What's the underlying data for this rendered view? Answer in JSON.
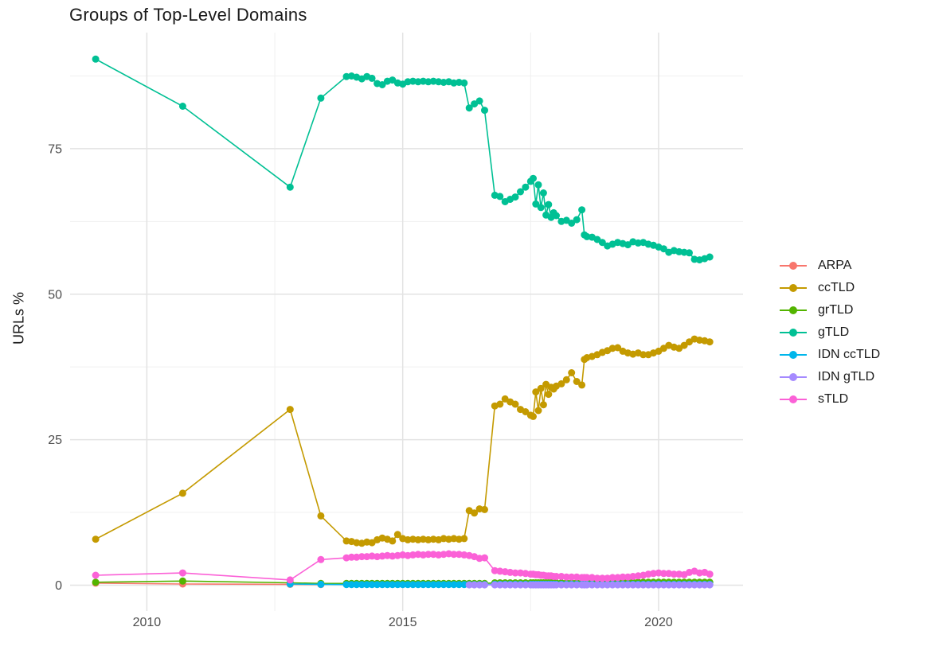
{
  "chart_data": {
    "type": "line",
    "title": "Groups of Top-Level Domains",
    "xlabel": "",
    "ylabel": "URLs %",
    "x_ticks": [
      2010,
      2015,
      2020
    ],
    "x_tick_labels": [
      "2010",
      "2015",
      "2020"
    ],
    "x_minor_gridlines": [
      2012.5,
      2017.5
    ],
    "y_ticks": [
      0,
      25,
      50,
      75
    ],
    "y_tick_labels": [
      "0",
      "25",
      "50",
      "75"
    ],
    "y_minor_gridlines": [
      12.5,
      37.5,
      62.5,
      87.5
    ],
    "xlim": [
      2008.5,
      2021.65
    ],
    "ylim": [
      -4.45,
      94.95
    ],
    "grid": "on",
    "legend_position": "right",
    "style": {
      "background": "#ffffff",
      "major_grid_color": "#e3e3e3",
      "minor_grid_color": "#f0f0f0",
      "tick_label_color": "#4d4d4d",
      "text_color": "#1a1a1a"
    },
    "series": [
      {
        "name": "ARPA",
        "color": "#F8766D",
        "x": [
          2009.0,
          2010.7,
          2012.8,
          2013.4
        ],
        "y": [
          0.35,
          0.2,
          0.15,
          0.1
        ]
      },
      {
        "name": "ccTLD",
        "color": "#C49A00",
        "x": [
          2009.0,
          2010.7,
          2012.8,
          2013.4,
          2013.9,
          2014.0,
          2014.1,
          2014.2,
          2014.3,
          2014.4,
          2014.5,
          2014.6,
          2014.7,
          2014.8,
          2014.9,
          2015.0,
          2015.1,
          2015.2,
          2015.3,
          2015.4,
          2015.5,
          2015.6,
          2015.7,
          2015.8,
          2015.9,
          2016.0,
          2016.1,
          2016.2,
          2016.3,
          2016.4,
          2016.5,
          2016.6,
          2016.8,
          2016.9,
          2017.0,
          2017.1,
          2017.2,
          2017.3,
          2017.4,
          2017.5,
          2017.55,
          2017.6,
          2017.65,
          2017.7,
          2017.75,
          2017.8,
          2017.85,
          2017.9,
          2017.95,
          2018.0,
          2018.1,
          2018.2,
          2018.3,
          2018.4,
          2018.5,
          2018.55,
          2018.6,
          2018.7,
          2018.8,
          2018.9,
          2019.0,
          2019.1,
          2019.2,
          2019.3,
          2019.4,
          2019.5,
          2019.6,
          2019.7,
          2019.8,
          2019.9,
          2020.0,
          2020.1,
          2020.2,
          2020.3,
          2020.4,
          2020.5,
          2020.6,
          2020.7,
          2020.8,
          2020.9,
          2021.0
        ],
        "y": [
          7.9,
          15.8,
          30.2,
          11.9,
          7.6,
          7.5,
          7.3,
          7.2,
          7.4,
          7.3,
          7.8,
          8.1,
          7.9,
          7.6,
          8.7,
          8.0,
          7.8,
          7.9,
          7.8,
          7.9,
          7.8,
          7.9,
          7.8,
          8.0,
          7.9,
          8.0,
          7.9,
          8.0,
          12.8,
          12.4,
          13.1,
          13.0,
          30.8,
          31.1,
          32.0,
          31.5,
          31.1,
          30.2,
          29.8,
          29.2,
          29.0,
          33.2,
          30.0,
          33.8,
          31.0,
          34.5,
          32.8,
          34.0,
          33.7,
          34.2,
          34.6,
          35.3,
          36.5,
          35.0,
          34.4,
          38.8,
          39.1,
          39.3,
          39.6,
          40.0,
          40.3,
          40.7,
          40.8,
          40.2,
          39.9,
          39.7,
          39.9,
          39.6,
          39.6,
          39.9,
          40.2,
          40.7,
          41.2,
          40.9,
          40.7,
          41.2,
          41.8,
          42.3,
          42.1,
          42.0,
          41.8
        ]
      },
      {
        "name": "grTLD",
        "color": "#53B400",
        "x": [
          2009.0,
          2010.7,
          2012.8,
          2013.4,
          2013.9,
          2014.0,
          2014.1,
          2014.2,
          2014.3,
          2014.4,
          2014.5,
          2014.6,
          2014.7,
          2014.8,
          2014.9,
          2015.0,
          2015.1,
          2015.2,
          2015.3,
          2015.4,
          2015.5,
          2015.6,
          2015.7,
          2015.8,
          2015.9,
          2016.0,
          2016.1,
          2016.2,
          2016.3,
          2016.4,
          2016.5,
          2016.6,
          2016.8,
          2016.9,
          2017.0,
          2017.1,
          2017.2,
          2017.3,
          2017.4,
          2017.5,
          2017.55,
          2017.6,
          2017.65,
          2017.7,
          2017.75,
          2017.8,
          2017.85,
          2017.9,
          2017.95,
          2018.0,
          2018.1,
          2018.2,
          2018.3,
          2018.4,
          2018.5,
          2018.55,
          2018.6,
          2018.7,
          2018.8,
          2018.9,
          2019.0,
          2019.1,
          2019.2,
          2019.3,
          2019.4,
          2019.5,
          2019.6,
          2019.7,
          2019.8,
          2019.9,
          2020.0,
          2020.1,
          2020.2,
          2020.3,
          2020.4,
          2020.5,
          2020.6,
          2020.7,
          2020.8,
          2020.9,
          2021.0
        ],
        "y": [
          0.5,
          0.7,
          0.4,
          0.3,
          0.3,
          0.3,
          0.3,
          0.3,
          0.3,
          0.3,
          0.3,
          0.3,
          0.3,
          0.3,
          0.3,
          0.3,
          0.3,
          0.3,
          0.3,
          0.3,
          0.3,
          0.3,
          0.3,
          0.3,
          0.3,
          0.3,
          0.3,
          0.3,
          0.3,
          0.3,
          0.3,
          0.3,
          0.4,
          0.4,
          0.4,
          0.4,
          0.4,
          0.4,
          0.4,
          0.4,
          0.4,
          0.4,
          0.4,
          0.4,
          0.4,
          0.4,
          0.4,
          0.4,
          0.4,
          0.4,
          0.4,
          0.4,
          0.4,
          0.4,
          0.4,
          0.4,
          0.4,
          0.4,
          0.4,
          0.4,
          0.4,
          0.5,
          0.5,
          0.5,
          0.5,
          0.5,
          0.5,
          0.5,
          0.5,
          0.5,
          0.5,
          0.5,
          0.5,
          0.5,
          0.5,
          0.5,
          0.5,
          0.5,
          0.5,
          0.5,
          0.5
        ]
      },
      {
        "name": "gTLD",
        "color": "#00C094",
        "x": [
          2009.0,
          2010.7,
          2012.8,
          2013.4,
          2013.9,
          2014.0,
          2014.1,
          2014.2,
          2014.3,
          2014.4,
          2014.5,
          2014.6,
          2014.7,
          2014.8,
          2014.9,
          2015.0,
          2015.1,
          2015.2,
          2015.3,
          2015.4,
          2015.5,
          2015.6,
          2015.7,
          2015.8,
          2015.9,
          2016.0,
          2016.1,
          2016.2,
          2016.3,
          2016.4,
          2016.5,
          2016.6,
          2016.8,
          2016.9,
          2017.0,
          2017.1,
          2017.2,
          2017.3,
          2017.4,
          2017.5,
          2017.55,
          2017.6,
          2017.65,
          2017.7,
          2017.75,
          2017.8,
          2017.85,
          2017.9,
          2017.95,
          2018.0,
          2018.1,
          2018.2,
          2018.3,
          2018.4,
          2018.5,
          2018.55,
          2018.6,
          2018.7,
          2018.8,
          2018.9,
          2019.0,
          2019.1,
          2019.2,
          2019.3,
          2019.4,
          2019.5,
          2019.6,
          2019.7,
          2019.8,
          2019.9,
          2020.0,
          2020.1,
          2020.2,
          2020.3,
          2020.4,
          2020.5,
          2020.6,
          2020.7,
          2020.8,
          2020.9,
          2021.0
        ],
        "y": [
          90.4,
          82.3,
          68.4,
          83.7,
          87.4,
          87.5,
          87.3,
          87.0,
          87.4,
          87.1,
          86.2,
          86.0,
          86.6,
          86.8,
          86.3,
          86.1,
          86.5,
          86.6,
          86.5,
          86.6,
          86.5,
          86.6,
          86.5,
          86.4,
          86.5,
          86.3,
          86.4,
          86.3,
          82.0,
          82.7,
          83.2,
          81.6,
          67.0,
          66.8,
          65.9,
          66.3,
          66.7,
          67.6,
          68.4,
          69.4,
          69.9,
          65.5,
          68.8,
          64.9,
          67.4,
          63.6,
          65.4,
          63.2,
          64.0,
          63.5,
          62.5,
          62.7,
          62.2,
          62.8,
          64.5,
          60.2,
          59.9,
          59.8,
          59.4,
          58.9,
          58.3,
          58.6,
          58.9,
          58.7,
          58.5,
          59.0,
          58.8,
          58.9,
          58.6,
          58.4,
          58.1,
          57.8,
          57.2,
          57.5,
          57.3,
          57.2,
          57.1,
          56.0,
          55.9,
          56.1,
          56.4
        ]
      },
      {
        "name": "IDN ccTLD",
        "color": "#00B6EB",
        "x": [
          2012.8,
          2013.4,
          2013.9,
          2014.0,
          2014.1,
          2014.2,
          2014.3,
          2014.4,
          2014.5,
          2014.6,
          2014.7,
          2014.8,
          2014.9,
          2015.0,
          2015.1,
          2015.2,
          2015.3,
          2015.4,
          2015.5,
          2015.6,
          2015.7,
          2015.8,
          2015.9,
          2016.0,
          2016.1,
          2016.2,
          2016.3,
          2016.4,
          2016.5,
          2016.6,
          2016.8,
          2016.9,
          2017.0,
          2017.1,
          2017.2,
          2017.3,
          2017.4,
          2017.5,
          2017.55,
          2017.6,
          2017.65,
          2017.7,
          2017.75,
          2017.8,
          2017.85,
          2017.9,
          2017.95,
          2018.0,
          2018.1,
          2018.2,
          2018.3,
          2018.4,
          2018.5,
          2018.55,
          2018.6,
          2018.7,
          2018.8,
          2018.9,
          2019.0,
          2019.1,
          2019.2,
          2019.3,
          2019.4,
          2019.5,
          2019.6,
          2019.7,
          2019.8,
          2019.9,
          2020.0,
          2020.1,
          2020.2,
          2020.3,
          2020.4,
          2020.5,
          2020.6,
          2020.7,
          2020.8,
          2020.9,
          2021.0
        ],
        "y": [
          0.2,
          0.15,
          0.1,
          0.1,
          0.1,
          0.1,
          0.1,
          0.1,
          0.1,
          0.1,
          0.1,
          0.1,
          0.1,
          0.1,
          0.1,
          0.1,
          0.1,
          0.1,
          0.1,
          0.1,
          0.1,
          0.1,
          0.1,
          0.1,
          0.1,
          0.1,
          0.1,
          0.1,
          0.1,
          0.1,
          0.15,
          0.15,
          0.15,
          0.15,
          0.15,
          0.15,
          0.15,
          0.15,
          0.15,
          0.15,
          0.15,
          0.15,
          0.15,
          0.15,
          0.15,
          0.15,
          0.15,
          0.15,
          0.15,
          0.15,
          0.15,
          0.15,
          0.15,
          0.15,
          0.15,
          0.15,
          0.15,
          0.15,
          0.15,
          0.15,
          0.15,
          0.15,
          0.15,
          0.15,
          0.15,
          0.15,
          0.15,
          0.15,
          0.15,
          0.15,
          0.15,
          0.15,
          0.15,
          0.15,
          0.15,
          0.15,
          0.15,
          0.15,
          0.15
        ]
      },
      {
        "name": "IDN gTLD",
        "color": "#A58AFF",
        "x": [
          2016.3,
          2016.4,
          2016.5,
          2016.6,
          2016.8,
          2016.9,
          2017.0,
          2017.1,
          2017.2,
          2017.3,
          2017.4,
          2017.5,
          2017.55,
          2017.6,
          2017.65,
          2017.7,
          2017.75,
          2017.8,
          2017.85,
          2017.9,
          2017.95,
          2018.0,
          2018.1,
          2018.2,
          2018.3,
          2018.4,
          2018.5,
          2018.55,
          2018.6,
          2018.7,
          2018.8,
          2018.9,
          2019.0,
          2019.1,
          2019.2,
          2019.3,
          2019.4,
          2019.5,
          2019.6,
          2019.7,
          2019.8,
          2019.9,
          2020.0,
          2020.1,
          2020.2,
          2020.3,
          2020.4,
          2020.5,
          2020.6,
          2020.7,
          2020.8,
          2020.9,
          2021.0
        ],
        "y": [
          0.05,
          0.05,
          0.05,
          0.05,
          0.05,
          0.05,
          0.05,
          0.05,
          0.05,
          0.05,
          0.05,
          0.05,
          0.05,
          0.05,
          0.05,
          0.05,
          0.05,
          0.05,
          0.05,
          0.05,
          0.05,
          0.05,
          0.05,
          0.05,
          0.05,
          0.05,
          0.05,
          0.05,
          0.05,
          0.05,
          0.05,
          0.05,
          0.05,
          0.05,
          0.05,
          0.05,
          0.05,
          0.05,
          0.05,
          0.05,
          0.05,
          0.05,
          0.05,
          0.05,
          0.05,
          0.05,
          0.05,
          0.05,
          0.05,
          0.05,
          0.05,
          0.05,
          0.05
        ]
      },
      {
        "name": "sTLD",
        "color": "#FB61D7",
        "x": [
          2009.0,
          2010.7,
          2012.8,
          2013.4,
          2013.9,
          2014.0,
          2014.1,
          2014.2,
          2014.3,
          2014.4,
          2014.5,
          2014.6,
          2014.7,
          2014.8,
          2014.9,
          2015.0,
          2015.1,
          2015.2,
          2015.3,
          2015.4,
          2015.5,
          2015.6,
          2015.7,
          2015.8,
          2015.9,
          2016.0,
          2016.1,
          2016.2,
          2016.3,
          2016.4,
          2016.5,
          2016.6,
          2016.8,
          2016.9,
          2017.0,
          2017.1,
          2017.2,
          2017.3,
          2017.4,
          2017.5,
          2017.55,
          2017.6,
          2017.65,
          2017.7,
          2017.75,
          2017.8,
          2017.85,
          2017.9,
          2017.95,
          2018.0,
          2018.1,
          2018.2,
          2018.3,
          2018.4,
          2018.5,
          2018.55,
          2018.6,
          2018.7,
          2018.8,
          2018.9,
          2019.0,
          2019.1,
          2019.2,
          2019.3,
          2019.4,
          2019.5,
          2019.6,
          2019.7,
          2019.8,
          2019.9,
          2020.0,
          2020.1,
          2020.2,
          2020.3,
          2020.4,
          2020.5,
          2020.6,
          2020.7,
          2020.8,
          2020.9,
          2021.0
        ],
        "y": [
          1.7,
          2.1,
          0.9,
          4.4,
          4.7,
          4.8,
          4.8,
          4.9,
          4.9,
          5.0,
          4.9,
          5.0,
          5.1,
          5.0,
          5.1,
          5.2,
          5.1,
          5.2,
          5.3,
          5.2,
          5.3,
          5.3,
          5.2,
          5.3,
          5.4,
          5.3,
          5.3,
          5.2,
          5.1,
          4.9,
          4.6,
          4.7,
          2.5,
          2.4,
          2.3,
          2.2,
          2.1,
          2.1,
          2.0,
          1.9,
          1.9,
          1.8,
          1.8,
          1.7,
          1.7,
          1.6,
          1.6,
          1.6,
          1.5,
          1.5,
          1.5,
          1.4,
          1.4,
          1.4,
          1.3,
          1.3,
          1.3,
          1.3,
          1.2,
          1.2,
          1.2,
          1.3,
          1.3,
          1.4,
          1.4,
          1.5,
          1.6,
          1.7,
          1.9,
          2.0,
          2.1,
          2.0,
          2.0,
          1.9,
          1.9,
          1.8,
          2.2,
          2.4,
          2.1,
          2.2,
          1.9
        ]
      }
    ]
  }
}
